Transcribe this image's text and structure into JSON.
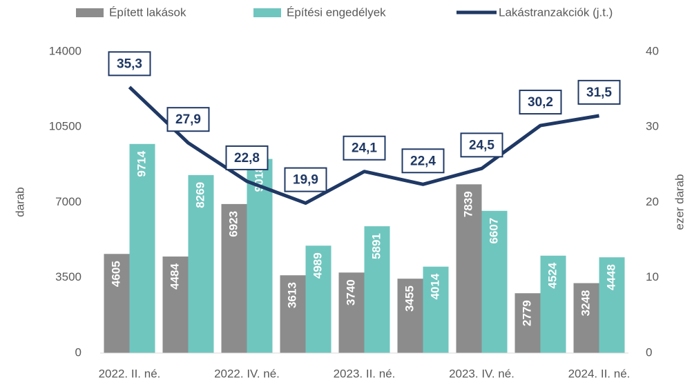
{
  "chart_data": {
    "type": "bar",
    "categories": [
      "2022. II. né.",
      null,
      "2022. IV. né.",
      null,
      "2023. II. né.",
      null,
      "2023. IV. né.",
      null,
      "2024. II. né."
    ],
    "series": [
      {
        "name": "Épített lakások",
        "color": "#8c8c8c",
        "values": [
          4605,
          4484,
          6923,
          3613,
          3740,
          3455,
          7839,
          2779,
          3248
        ]
      },
      {
        "name": "Építési engedélyek",
        "color": "#6fc6bf",
        "values": [
          9714,
          8269,
          9018,
          4989,
          5891,
          4014,
          6607,
          4524,
          4448
        ]
      },
      {
        "name": "Lakástranzakciók (j.t.)",
        "color": "#1f3864",
        "type": "line",
        "axis": "y2",
        "values": [
          35.3,
          27.9,
          22.8,
          19.9,
          24.1,
          22.4,
          24.5,
          30.2,
          31.5
        ],
        "value_labels": [
          "35,3",
          "27,9",
          "22,8",
          "19,9",
          "24,1",
          "22,4",
          "24,5",
          "30,2",
          "31,5"
        ]
      }
    ],
    "ylabel": "darab",
    "y2label": "ezer darab",
    "ylim": [
      0,
      14000
    ],
    "yticks": [
      0,
      3500,
      7000,
      10500,
      14000
    ],
    "y2lim": [
      0,
      40
    ],
    "y2ticks": [
      0,
      10,
      20,
      30,
      40
    ],
    "legend": "top"
  }
}
